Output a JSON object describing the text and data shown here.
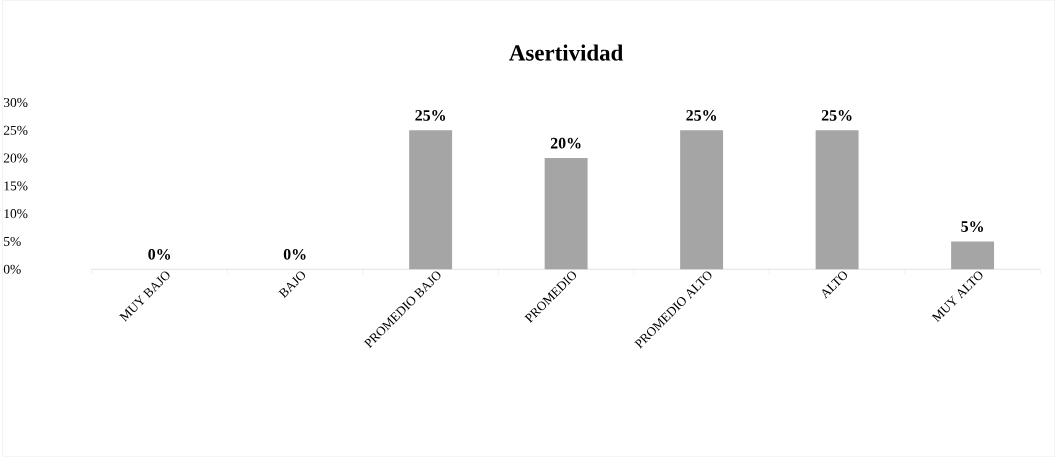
{
  "chart_data": {
    "type": "bar",
    "title": "Asertividad",
    "categories": [
      "MUY BAJO",
      "BAJO",
      "PROMEDIO BAJO",
      "PROMEDIO",
      "PROMEDIO ALTO",
      "ALTO",
      "MUY ALTO"
    ],
    "values": [
      0,
      0,
      25,
      20,
      25,
      25,
      5
    ],
    "value_labels": [
      "0%",
      "0%",
      "25%",
      "20%",
      "25%",
      "25%",
      "5%"
    ],
    "color": "#a5a5a5",
    "ylim": [
      0,
      30
    ],
    "yticks": [
      {
        "value": 0,
        "label": "0%"
      },
      {
        "value": 5,
        "label": "5%"
      },
      {
        "value": 10,
        "label": "10%"
      },
      {
        "value": 15,
        "label": "15%"
      },
      {
        "value": 20,
        "label": "20%"
      },
      {
        "value": 25,
        "label": "25%"
      },
      {
        "value": 30,
        "label": "30%"
      }
    ]
  }
}
